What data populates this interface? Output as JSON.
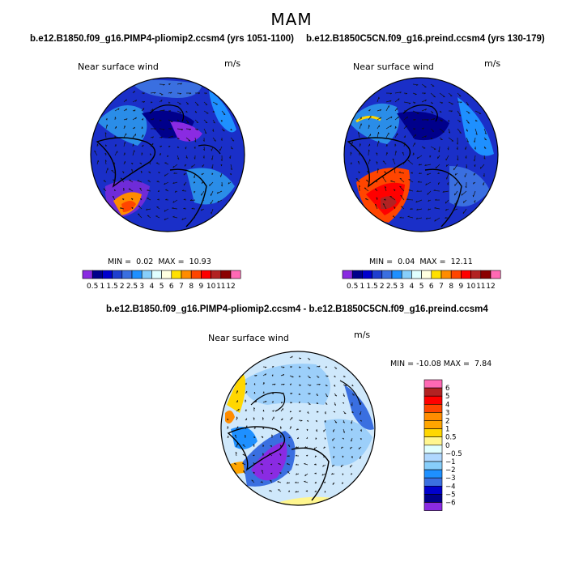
{
  "figure": {
    "title": "MAM",
    "panel1_title": "b.e12.B1850.f09_g16.PIMP4-pliomip2.ccsm4 (yrs 1051-1100)",
    "panel2_title": "b.e12.B1850C5CN.f09_g16.preind.ccsm4 (yrs 130-179)",
    "panel3_title": "b.e12.B1850.f09_g16.PIMP4-pliomip2.ccsm4 - b.e12.B1850C5CN.f09_g16.preind.ccsm4"
  },
  "chart_data": [
    {
      "type": "heatmap",
      "projection": "polar-stereographic",
      "title": "b.e12.B1850.f09_g16.PIMP4-pliomip2.ccsm4 (yrs 1051-1100)",
      "field": "Near surface wind",
      "units": "m/s",
      "min_label": "MIN =",
      "min": "0.02",
      "max_label": "MAX =",
      "max": "10.93",
      "levels": [
        "0.5",
        "1",
        "1.5",
        "2",
        "2.5",
        "3",
        "4",
        "5",
        "6",
        "7",
        "8",
        "9",
        "10",
        "11",
        "12"
      ],
      "colors": [
        "#8a2be2",
        "#00008b",
        "#0000cd",
        "#1e3ecf",
        "#3a6fe0",
        "#1e90ff",
        "#87cefa",
        "#e0ffff",
        "#ffffe0",
        "#ffe000",
        "#ff8c00",
        "#ff4500",
        "#ff0000",
        "#b22222",
        "#8b0000",
        "#ff69b4"
      ]
    },
    {
      "type": "heatmap",
      "projection": "polar-stereographic",
      "title": "b.e12.B1850C5CN.f09_g16.preind.ccsm4 (yrs 130-179)",
      "field": "Near surface wind",
      "units": "m/s",
      "min_label": "MIN =",
      "min": "0.04",
      "max_label": "MAX =",
      "max": "12.11",
      "levels": [
        "0.5",
        "1",
        "1.5",
        "2",
        "2.5",
        "3",
        "4",
        "5",
        "6",
        "7",
        "8",
        "9",
        "10",
        "11",
        "12"
      ],
      "colors": [
        "#8a2be2",
        "#00008b",
        "#0000cd",
        "#1e3ecf",
        "#3a6fe0",
        "#1e90ff",
        "#87cefa",
        "#e0ffff",
        "#ffffe0",
        "#ffe000",
        "#ff8c00",
        "#ff4500",
        "#ff0000",
        "#b22222",
        "#8b0000",
        "#ff69b4"
      ]
    },
    {
      "type": "heatmap",
      "projection": "polar-stereographic",
      "title": "b.e12.B1850.f09_g16.PIMP4-pliomip2.ccsm4 - b.e12.B1850C5CN.f09_g16.preind.ccsm4",
      "field": "Near surface wind",
      "units": "m/s",
      "min_label": "MIN =",
      "min": "-10.08",
      "max_label": "MAX =",
      "max": "7.84",
      "levels": [
        "6",
        "5",
        "4",
        "3",
        "2",
        "1",
        "0.5",
        "0",
        "−0.5",
        "−1",
        "−2",
        "−3",
        "−4",
        "−5",
        "−6"
      ],
      "colors": [
        "#ff69b4",
        "#b22222",
        "#ff0000",
        "#ff4500",
        "#ff8c00",
        "#ffa500",
        "#ffd700",
        "#fff68f",
        "#e0ffff",
        "#b0d8ff",
        "#87cefa",
        "#1e90ff",
        "#3a6fe0",
        "#0000cd",
        "#00008b",
        "#8a2be2"
      ]
    }
  ]
}
